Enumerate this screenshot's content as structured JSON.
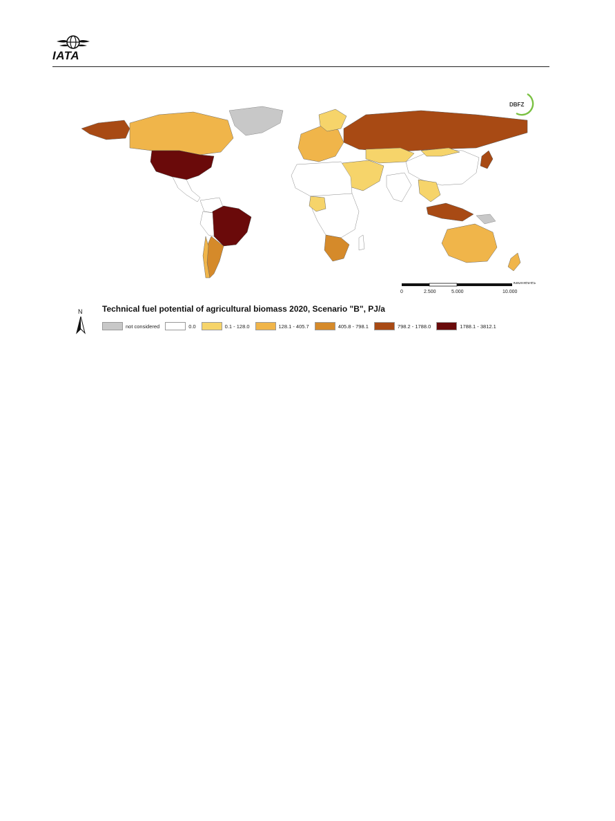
{
  "header": {
    "logo_text": "IATA"
  },
  "map": {
    "title": "Technical fuel potential of agricultural biomass 2020, Scenario \"B\", PJ/a",
    "source_logo": "DBFZ",
    "north_label": "N",
    "scale": {
      "unit_label": "kilometres",
      "ticks": [
        "0",
        "2.500",
        "5.000",
        "10.000"
      ]
    },
    "legend": [
      {
        "label": "not considered",
        "color": "#c8c8c8"
      },
      {
        "label": "0.0",
        "color": "#ffffff"
      },
      {
        "label": "0.1 - 128.0",
        "color": "#f6d46a"
      },
      {
        "label": "128.1 - 405.7",
        "color": "#f0b54a"
      },
      {
        "label": "405.8 - 798.1",
        "color": "#d58a2a"
      },
      {
        "label": "798.2 - 1788.0",
        "color": "#a84a14"
      },
      {
        "label": "1788.1 - 3812.1",
        "color": "#6a0a0a"
      }
    ]
  }
}
